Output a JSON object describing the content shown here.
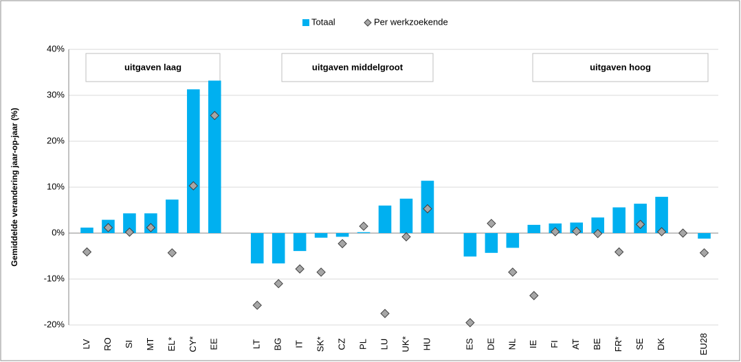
{
  "chart_data": {
    "type": "bar",
    "y_label": "Gemiddelde verandering jaar-op-jaar (%)",
    "categories": [
      "LV",
      "RO",
      "SI",
      "MT",
      "EL*",
      "CY*",
      "EE",
      null,
      "LT",
      "BG",
      "IT",
      "SK*",
      "CZ",
      "PL",
      "LU",
      "UK*",
      "HU",
      null,
      "ES",
      "DE",
      "NL",
      "IE",
      "FI",
      "AT",
      "BE",
      "FR*",
      "SE",
      "DK",
      null,
      "EU28"
    ],
    "series": [
      {
        "name": "Totaal",
        "type": "bar",
        "color": "#00b0f0",
        "values": [
          1.2,
          2.9,
          4.3,
          4.3,
          7.3,
          31.3,
          33.2,
          null,
          -6.6,
          -6.6,
          -3.9,
          -1.0,
          -0.8,
          0.2,
          6.0,
          7.5,
          11.4,
          null,
          -5.1,
          -4.3,
          -3.2,
          1.8,
          2.1,
          2.3,
          3.4,
          5.6,
          6.4,
          7.9,
          null,
          -1.2
        ]
      },
      {
        "name": "Per werkzoekende",
        "type": "scatter",
        "color": "#a6a6a6",
        "values": [
          -4.1,
          1.2,
          0.2,
          1.2,
          -4.3,
          10.3,
          25.6,
          null,
          -15.7,
          -11.0,
          -7.8,
          -8.5,
          -2.3,
          1.5,
          -17.5,
          -0.8,
          5.3,
          null,
          -19.5,
          2.1,
          -8.5,
          -13.6,
          0.3,
          0.4,
          -0.1,
          -4.1,
          1.9,
          0.3,
          0,
          -4.3
        ]
      }
    ],
    "annotations": [
      "uitgaven laag",
      "uitgaven middelgroot",
      "uitgaven hoog"
    ],
    "ylim": [
      -20,
      40
    ],
    "yticks": [
      {
        "value": -20,
        "label": "-20%"
      },
      {
        "value": -10,
        "label": "-10%"
      },
      {
        "value": 0,
        "label": "0%"
      },
      {
        "value": 10,
        "label": "10%"
      },
      {
        "value": 20,
        "label": "20%"
      },
      {
        "value": 30,
        "label": "30%"
      },
      {
        "value": 40,
        "label": "40%"
      }
    ],
    "grid": true,
    "legend": "top"
  }
}
